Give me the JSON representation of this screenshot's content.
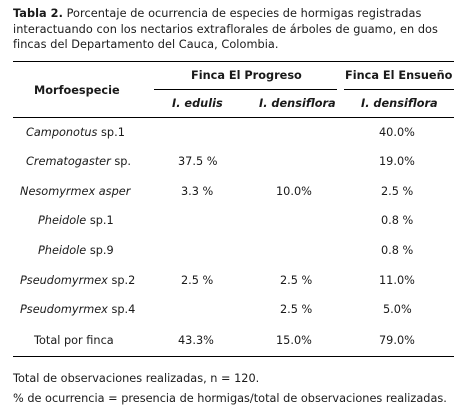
{
  "caption": {
    "label": "Tabla 2.",
    "text": " Porcentaje de ocurrencia de especies de hormigas registradas interactuando con los nectarios extraflorales de árboles de guamo, en dos fincas del Departamento del Cauca, Colombia."
  },
  "table": {
    "header": {
      "morfo": "Morfoespecie",
      "finca1": "Finca El Progreso",
      "finca2": "Finca El Ensueño",
      "sub1": "I. edulis",
      "sub2": "I. densiflora",
      "sub3": "I. densiflora"
    },
    "rows": [
      {
        "name": "Camponotus",
        "suffix": " sp.1",
        "c1": "",
        "c2": "",
        "c3": "40.0%"
      },
      {
        "name": "Crematogaster",
        "suffix": " sp.",
        "c1": "37.5 %",
        "c2": "",
        "c3": "19.0%"
      },
      {
        "name": "Nesomyrmex asper",
        "suffix": "",
        "c1": "3.3 %",
        "c2": "10.0%",
        "c3": "2.5 %"
      },
      {
        "name": "Pheidole",
        "suffix": " sp.1",
        "c1": "",
        "c2": "",
        "c3": "0.8 %"
      },
      {
        "name": "Pheidole",
        "suffix": " sp.9",
        "c1": "",
        "c2": "",
        "c3": "0.8 %"
      },
      {
        "name": "Pseudomyrmex",
        "suffix": " sp.2",
        "c1": "2.5 %",
        "c2": "2.5 %",
        "c3": "11.0%"
      },
      {
        "name": "Pseudomyrmex",
        "suffix": " sp.4",
        "c1": "",
        "c2": "2.5 %",
        "c3": "5.0%"
      }
    ],
    "total": {
      "label": "Total por finca",
      "c1": "43.3%",
      "c2": "15.0%",
      "c3": "79.0%"
    }
  },
  "notes": {
    "line1": "Total de observaciones realizadas, n = 120.",
    "line2": "% de ocurrencia = presencia de hormigas/total de observaciones realizadas."
  }
}
